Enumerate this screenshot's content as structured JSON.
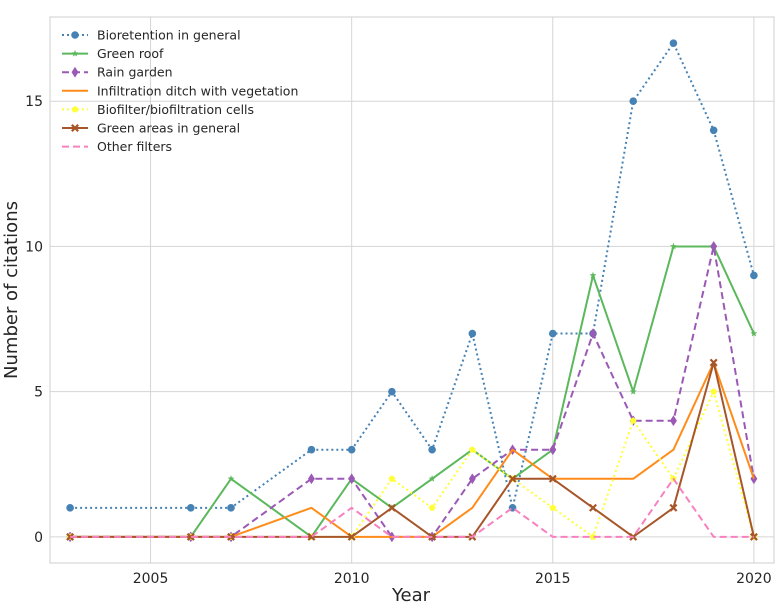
{
  "chart_data": {
    "type": "line",
    "title": "",
    "xlabel": "Year",
    "ylabel": "Number of citations",
    "xlim": [
      2002.5,
      2020.5
    ],
    "ylim": [
      -0.9,
      17.9
    ],
    "xticks": [
      2005,
      2010,
      2015,
      2020
    ],
    "yticks": [
      0,
      5,
      10,
      15
    ],
    "grid": true,
    "legend": "top-left",
    "series": [
      {
        "name": "Bioretention in general",
        "color": "#4682b4",
        "line_style": "dotted",
        "marker": "circle",
        "x": [
          2003,
          2006,
          2007,
          2009,
          2010,
          2011,
          2012,
          2013,
          2014,
          2015,
          2016,
          2017,
          2018,
          2019,
          2020
        ],
        "y": [
          1,
          1,
          1,
          3,
          3,
          5,
          3,
          7,
          1,
          7,
          7,
          15,
          17,
          14,
          9
        ]
      },
      {
        "name": "Green roof",
        "color": "#5cb85c",
        "line_style": "solid",
        "marker": "star",
        "x": [
          2003,
          2006,
          2007,
          2009,
          2010,
          2011,
          2012,
          2013,
          2014,
          2015,
          2016,
          2017,
          2018,
          2019,
          2020
        ],
        "y": [
          0,
          0,
          2,
          0,
          2,
          1,
          2,
          3,
          2,
          3,
          9,
          5,
          10,
          10,
          7
        ]
      },
      {
        "name": "Rain garden",
        "color": "#9b59b6",
        "line_style": "dashed",
        "marker": "diamond",
        "x": [
          2003,
          2006,
          2007,
          2009,
          2010,
          2011,
          2012,
          2013,
          2014,
          2015,
          2016,
          2017,
          2018,
          2019,
          2020
        ],
        "y": [
          0,
          0,
          0,
          2,
          2,
          0,
          0,
          2,
          3,
          3,
          7,
          4,
          4,
          10,
          2
        ]
      },
      {
        "name": "Infiltration ditch with vegetation",
        "color": "#ff8c1a",
        "line_style": "solid",
        "marker": "none",
        "x": [
          2003,
          2006,
          2007,
          2009,
          2010,
          2011,
          2012,
          2013,
          2014,
          2015,
          2016,
          2017,
          2018,
          2019,
          2020
        ],
        "y": [
          0,
          0,
          0,
          1,
          0,
          0,
          0,
          1,
          3,
          2,
          2,
          2,
          3,
          6,
          2
        ]
      },
      {
        "name": "Biofilter/biofiltration cells",
        "color": "#ffff33",
        "line_style": "dotted",
        "marker": "pentagon",
        "x": [
          2003,
          2006,
          2007,
          2009,
          2010,
          2011,
          2012,
          2013,
          2014,
          2015,
          2016,
          2017,
          2018,
          2019,
          2020
        ],
        "y": [
          0,
          0,
          0,
          0,
          0,
          2,
          1,
          3,
          2,
          1,
          0,
          4,
          2,
          5,
          0
        ]
      },
      {
        "name": "Green areas in general",
        "color": "#a65628",
        "line_style": "solid",
        "marker": "x",
        "x": [
          2003,
          2006,
          2007,
          2009,
          2010,
          2011,
          2012,
          2013,
          2014,
          2015,
          2016,
          2017,
          2018,
          2019,
          2020
        ],
        "y": [
          0,
          0,
          0,
          0,
          0,
          1,
          0,
          0,
          2,
          2,
          1,
          0,
          1,
          6,
          0
        ]
      },
      {
        "name": "Other filters",
        "color": "#f781bf",
        "line_style": "dashed",
        "marker": "none",
        "x": [
          2003,
          2006,
          2007,
          2009,
          2010,
          2011,
          2012,
          2013,
          2014,
          2015,
          2016,
          2017,
          2018,
          2019,
          2020
        ],
        "y": [
          0,
          0,
          0,
          0,
          1,
          0,
          0,
          0,
          1,
          0,
          0,
          0,
          2,
          0,
          0
        ]
      }
    ]
  }
}
